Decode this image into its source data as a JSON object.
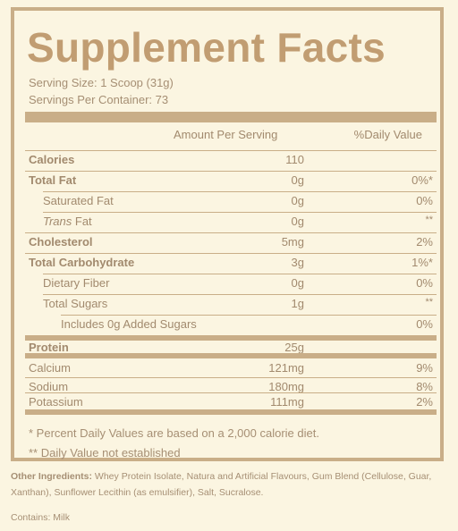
{
  "title": "Supplement Facts",
  "serving_size": "Serving Size: 1 Scoop (31g)",
  "servings_per_container": "Servings Per Container: 73",
  "header": {
    "amount": "Amount Per Serving",
    "daily_value": "%Daily Value"
  },
  "rows": [
    {
      "label": "Calories",
      "amount": "110",
      "dv": ""
    },
    {
      "label": "Total Fat",
      "amount": "0g",
      "dv": "0%*"
    },
    {
      "label": "Saturated Fat",
      "amount": "0g",
      "dv": "0%"
    },
    {
      "label_italic": "Trans",
      "label": " Fat",
      "amount": "0g",
      "dv": "**"
    },
    {
      "label": "Cholesterol",
      "amount": "5mg",
      "dv": "2%"
    },
    {
      "label": "Total Carbohydrate",
      "amount": "3g",
      "dv": "1%*"
    },
    {
      "label": "Dietary Fiber",
      "amount": "0g",
      "dv": "0%"
    },
    {
      "label": "Total Sugars",
      "amount": "1g",
      "dv": "**"
    },
    {
      "label": "Includes 0g Added Sugars",
      "amount": "",
      "dv": "0%"
    },
    {
      "label": "Protein",
      "amount": "25g",
      "dv": ""
    },
    {
      "label": "Calcium",
      "amount": "121mg",
      "dv": "9%"
    },
    {
      "label": "Sodium",
      "amount": "180mg",
      "dv": "8%"
    },
    {
      "label": "Potassium",
      "amount": "111mg",
      "dv": "2%"
    }
  ],
  "footnotes": {
    "percent": "* Percent Daily Values are based on a 2,000 calorie diet.",
    "not_established": "** Daily Value not established"
  },
  "other_ingredients": {
    "label": "Other Ingredients:",
    "text": " Whey Protein Isolate, Natura and Artificial Flavours, Gum Blend (Cellulose, Guar, Xanthan), Sunflower Lecithin (as emulsifier), Salt, Sucralose."
  },
  "contains": "Contains: Milk"
}
